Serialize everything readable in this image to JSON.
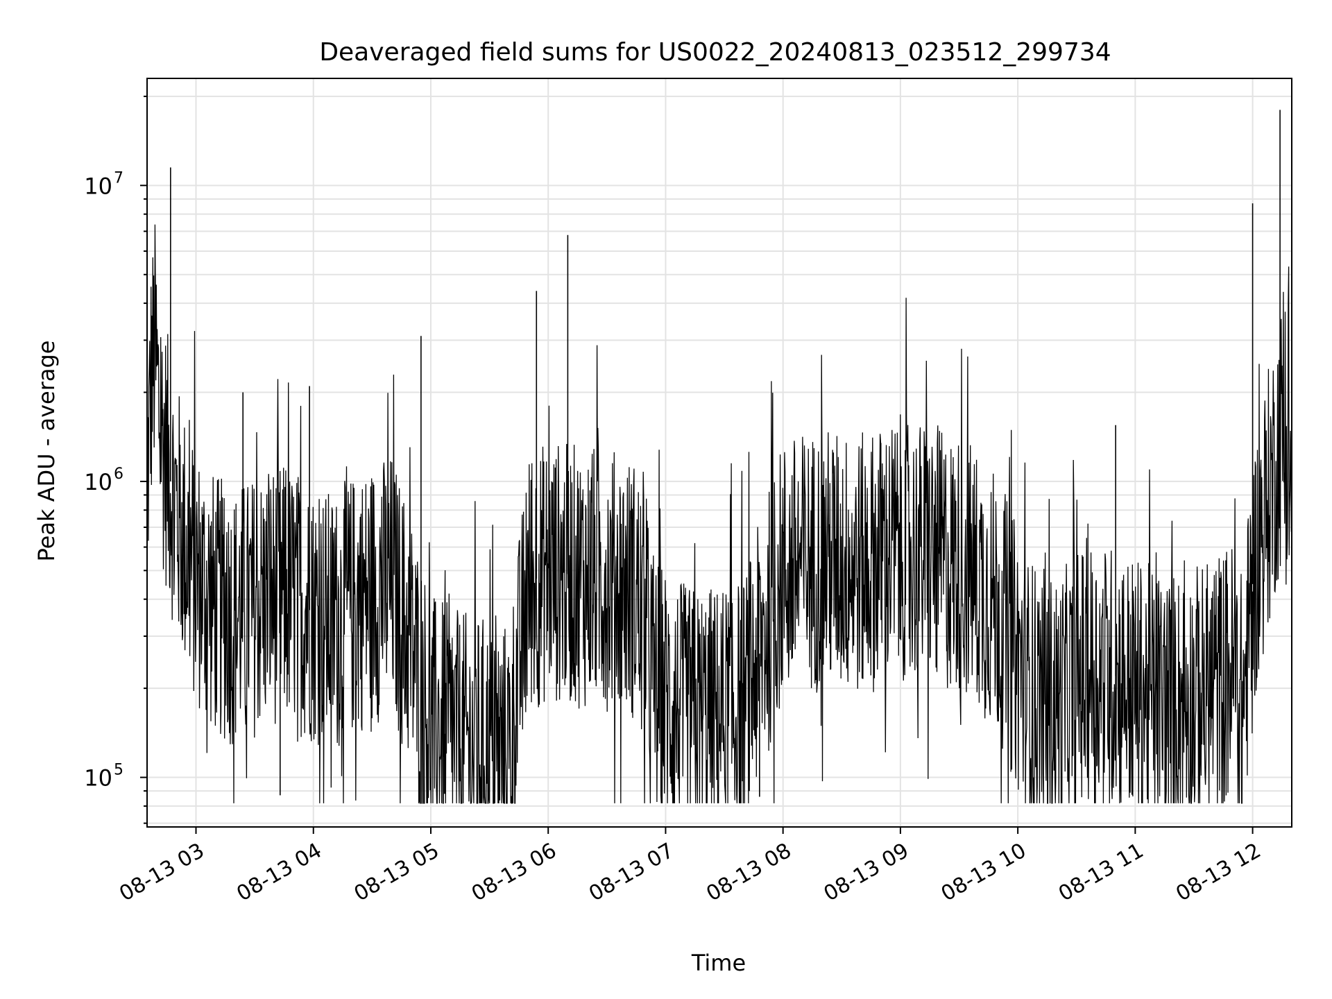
{
  "chart_data": {
    "type": "line",
    "title": "Deaveraged field sums for US0022_20240813_023512_299734",
    "xlabel": "Time",
    "ylabel": "Peak ADU - average",
    "yscale": "log",
    "ylim": [
      68000,
      23000000
    ],
    "xlim": [
      "2024-08-13 02:35",
      "2024-08-13 12:20"
    ],
    "grid": true,
    "legend": "none",
    "line_color": "#000000",
    "x_tick_labels": [
      "08-13 03",
      "08-13 04",
      "08-13 05",
      "08-13 06",
      "08-13 07",
      "08-13 08",
      "08-13 09",
      "08-13 10",
      "08-13 11",
      "08-13 12"
    ],
    "x_tick_times": [
      "2024-08-13 03:00",
      "2024-08-13 04:00",
      "2024-08-13 05:00",
      "2024-08-13 06:00",
      "2024-08-13 07:00",
      "2024-08-13 08:00",
      "2024-08-13 09:00",
      "2024-08-13 10:00",
      "2024-08-13 11:00",
      "2024-08-13 12:00"
    ],
    "y_ticks": [
      {
        "value": 100000,
        "base": "10",
        "exp": "5"
      },
      {
        "value": 1000000,
        "base": "10",
        "exp": "6"
      },
      {
        "value": 10000000,
        "base": "10",
        "exp": "7"
      }
    ],
    "series": [
      {
        "x": [
          "2024-08-13 02:35",
          "2024-08-13 02:37",
          "2024-08-13 02:39",
          "2024-08-13 02:41",
          "2024-08-13 02:43",
          "2024-08-13 02:47",
          "2024-08-13 02:51",
          "2024-08-13 02:55",
          "2024-08-13 03:00",
          "2024-08-13 03:05",
          "2024-08-13 03:10",
          "2024-08-13 03:15",
          "2024-08-13 03:20",
          "2024-08-13 03:30",
          "2024-08-13 03:40",
          "2024-08-13 03:50",
          "2024-08-13 04:00",
          "2024-08-13 04:10",
          "2024-08-13 04:20",
          "2024-08-13 04:30",
          "2024-08-13 04:40",
          "2024-08-13 04:50",
          "2024-08-13 05:00",
          "2024-08-13 05:15",
          "2024-08-13 05:30",
          "2024-08-13 05:40",
          "2024-08-13 05:50",
          "2024-08-13 06:00",
          "2024-08-13 06:15",
          "2024-08-13 06:30",
          "2024-08-13 06:45",
          "2024-08-13 06:55",
          "2024-08-13 07:10",
          "2024-08-13 07:25",
          "2024-08-13 07:40",
          "2024-08-13 08:00",
          "2024-08-13 08:20",
          "2024-08-13 08:40",
          "2024-08-13 09:00",
          "2024-08-13 09:20",
          "2024-08-13 09:35",
          "2024-08-13 09:50",
          "2024-08-13 10:05",
          "2024-08-13 10:20",
          "2024-08-13 10:35",
          "2024-08-13 10:50",
          "2024-08-13 11:05",
          "2024-08-13 11:20",
          "2024-08-13 11:35",
          "2024-08-13 11:50",
          "2024-08-13 11:55",
          "2024-08-13 12:00",
          "2024-08-13 12:05",
          "2024-08-13 12:10",
          "2024-08-13 12:15",
          "2024-08-13 12:20"
        ],
        "y": [
          950000,
          2100000,
          2800000,
          1800000,
          1400000,
          1000000,
          750000,
          600000,
          480000,
          420000,
          380000,
          360000,
          350000,
          380000,
          420000,
          400000,
          360000,
          330000,
          380000,
          420000,
          450000,
          280000,
          150000,
          130000,
          125000,
          120000,
          450000,
          500000,
          480000,
          470000,
          430000,
          200000,
          160000,
          160000,
          170000,
          500000,
          550000,
          520000,
          600000,
          550000,
          500000,
          380000,
          200000,
          170000,
          230000,
          220000,
          190000,
          180000,
          190000,
          230000,
          170000,
          450000,
          700000,
          1000000,
          1500000,
          950000
        ],
        "spikes": [
          {
            "x": "2024-08-13 02:47",
            "y": 11500000
          },
          {
            "x": "2024-08-13 04:55",
            "y": 3100000
          },
          {
            "x": "2024-08-13 05:54",
            "y": 4400000
          },
          {
            "x": "2024-08-13 06:10",
            "y": 6800000
          },
          {
            "x": "2024-08-13 12:00",
            "y": 8700000
          },
          {
            "x": "2024-08-13 12:14",
            "y": 18000000
          },
          {
            "x": "2024-08-13 03:24",
            "y": 2000000
          },
          {
            "x": "2024-08-13 03:58",
            "y": 2100000
          },
          {
            "x": "2024-08-13 08:50",
            "y": 1350000
          },
          {
            "x": "2024-08-13 10:50",
            "y": 1550000
          },
          {
            "x": "2024-08-13 03:43",
            "y": 87000
          },
          {
            "x": "2024-08-13 07:48",
            "y": 86000
          },
          {
            "x": "2024-08-13 05:07",
            "y": 88000
          }
        ]
      }
    ]
  }
}
